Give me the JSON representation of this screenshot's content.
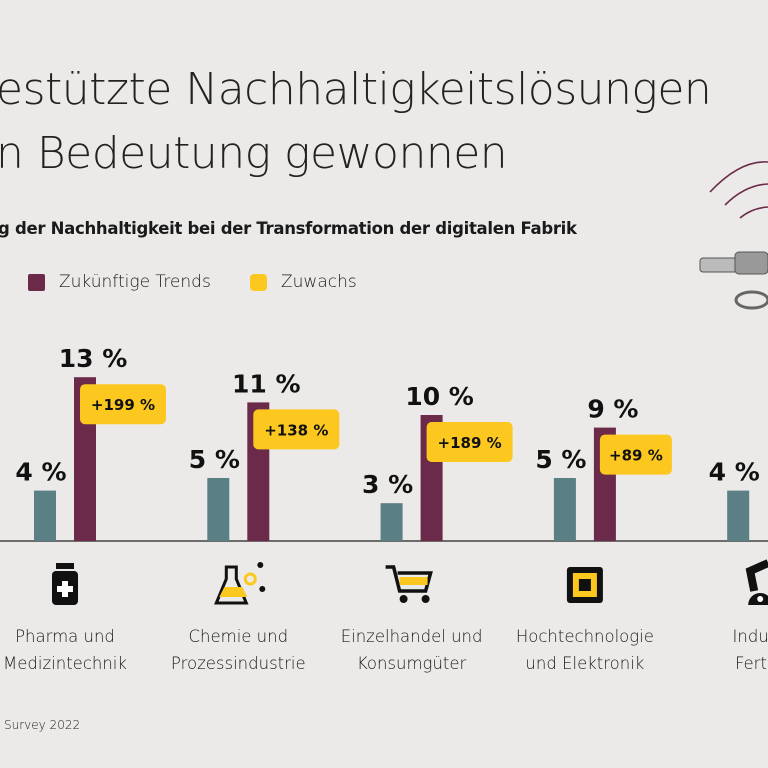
{
  "title_line1": "estützte Nachhaltigkeitslösungen",
  "title_line2": "n Bedeutung gewonnen",
  "subtitle": "g der Nachhaltigkeit bei der Transformation der digitalen Fabrik",
  "legend": [
    {
      "label": "Zukünftige Trends",
      "color": "#6b2a4a"
    },
    {
      "label": "Zuwachs",
      "color": "#fcc820"
    }
  ],
  "source": "Survey 2022",
  "chart_data": {
    "type": "bar",
    "categories": [
      "Pharma und Medizintechnik",
      "Chemie und Prozessindustrie",
      "Einzelhandel und Konsumgüter",
      "Hochtechnologie und Elektronik",
      "Industrielle Fertigung"
    ],
    "category_lines": [
      [
        "Pharma und",
        "Medizintechnik"
      ],
      [
        "Chemie und",
        "Prozessindustrie"
      ],
      [
        "Einzelhandel und",
        "Konsumgüter"
      ],
      [
        "Hochtechnologie",
        "und Elektronik"
      ],
      [
        "Indust",
        "Fertig"
      ]
    ],
    "icons": [
      "medicine-bottle-icon",
      "flask-molecule-icon",
      "shopping-cart-icon",
      "chip-icon",
      "robot-arm-icon"
    ],
    "series": [
      {
        "color": "#5a7f84",
        "values": [
          4,
          5,
          3,
          5,
          4
        ],
        "labels": [
          "4 %",
          "5 %",
          "3 %",
          "5 %",
          "4 %"
        ]
      },
      {
        "name": "Zukünftige Trends",
        "color": "#6b2a4a",
        "values": [
          13,
          11,
          10,
          9,
          null
        ],
        "labels": [
          "13 %",
          "11 %",
          "10 %",
          "9 %",
          ""
        ]
      }
    ],
    "growth": [
      "+199 %",
      "+138 %",
      "+189 %",
      "+89 %",
      null
    ],
    "growth_color": "#fcc820",
    "unit": "%",
    "ylim": [
      0,
      14
    ],
    "grid": false
  }
}
